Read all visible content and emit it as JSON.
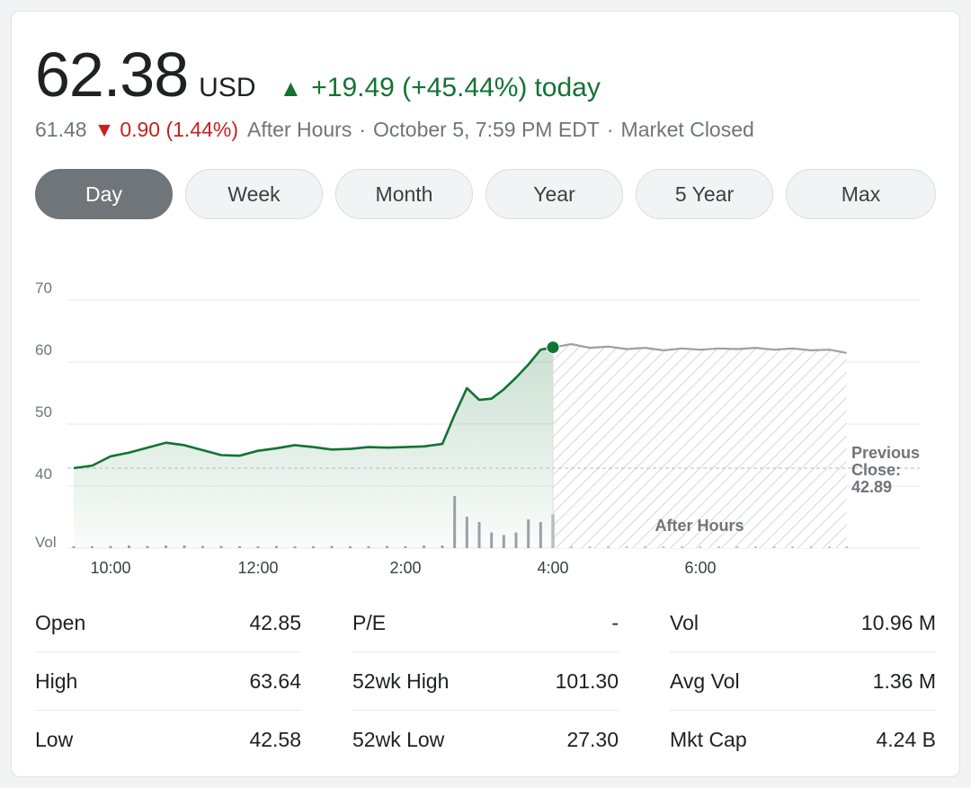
{
  "quote": {
    "price": "62.38",
    "currency": "USD",
    "change_arrow": "▲",
    "change": "+19.49 (+45.44%)",
    "change_period": "today",
    "after_hours_price": "61.48",
    "after_hours_arrow": "▼",
    "after_hours_change": "0.90 (1.44%)",
    "after_hours_label": "After Hours",
    "separator": "·",
    "datetime": "October 5, 7:59 PM EDT",
    "market_status": "Market Closed"
  },
  "tabs": [
    {
      "label": "Day",
      "active": true
    },
    {
      "label": "Week",
      "active": false
    },
    {
      "label": "Month",
      "active": false
    },
    {
      "label": "Year",
      "active": false
    },
    {
      "label": "5 Year",
      "active": false
    },
    {
      "label": "Max",
      "active": false
    }
  ],
  "colors": {
    "up": "#137333",
    "down": "#c5221f",
    "after_hours_line": "#9aa0a6",
    "grid": "#e8eaed"
  },
  "chart_data": {
    "type": "area",
    "y_tick_labels": [
      "70",
      "60",
      "50",
      "40"
    ],
    "volume_label": "Vol",
    "x_tick_labels": [
      "10:00",
      "12:00",
      "2:00",
      "4:00",
      "6:00"
    ],
    "ylim": [
      27.5,
      72.5
    ],
    "previous_close": {
      "label_line1": "Previous",
      "label_line2": "Close:",
      "value_text": "42.89",
      "value": 42.89
    },
    "after_hours_region_label": "After Hours",
    "regular_session": {
      "x": [
        "9:30",
        "9:45",
        "10:00",
        "10:15",
        "10:30",
        "10:45",
        "11:00",
        "11:15",
        "11:30",
        "11:45",
        "12:00",
        "12:15",
        "12:30",
        "12:45",
        "1:00",
        "1:15",
        "1:30",
        "1:45",
        "2:00",
        "2:15",
        "2:30",
        "2:40",
        "2:50",
        "3:00",
        "3:10",
        "3:20",
        "3:30",
        "3:40",
        "3:50",
        "4:00"
      ],
      "values": [
        42.9,
        43.3,
        44.8,
        45.4,
        46.2,
        47.0,
        46.6,
        45.8,
        45.0,
        44.9,
        45.7,
        46.1,
        46.6,
        46.3,
        45.9,
        46.0,
        46.3,
        46.2,
        46.3,
        46.4,
        46.8,
        51.5,
        55.8,
        53.9,
        54.1,
        55.6,
        57.5,
        59.6,
        62.0,
        62.38
      ]
    },
    "after_hours_session": {
      "x": [
        "4:00",
        "4:15",
        "4:30",
        "4:45",
        "5:00",
        "5:15",
        "5:30",
        "5:45",
        "6:00",
        "6:15",
        "6:30",
        "6:45",
        "7:00",
        "7:15",
        "7:30",
        "7:45",
        "7:59"
      ],
      "values": [
        62.38,
        62.9,
        62.3,
        62.5,
        62.1,
        62.3,
        61.9,
        62.2,
        62.0,
        62.2,
        62.1,
        62.3,
        62.0,
        62.2,
        61.9,
        62.0,
        61.48
      ]
    },
    "volume_relative": [
      0.02,
      0.03,
      0.04,
      0.05,
      0.04,
      0.05,
      0.05,
      0.04,
      0.04,
      0.03,
      0.03,
      0.04,
      0.03,
      0.03,
      0.04,
      0.03,
      0.03,
      0.04,
      0.03,
      0.05,
      0.05,
      1.0,
      0.6,
      0.5,
      0.3,
      0.25,
      0.3,
      0.55,
      0.5,
      0.65
    ]
  },
  "stats": {
    "columns": [
      [
        {
          "label": "Open",
          "value": "42.85"
        },
        {
          "label": "High",
          "value": "63.64"
        },
        {
          "label": "Low",
          "value": "42.58"
        }
      ],
      [
        {
          "label": "P/E",
          "value": "-"
        },
        {
          "label": "52wk High",
          "value": "101.30"
        },
        {
          "label": "52wk Low",
          "value": "27.30"
        }
      ],
      [
        {
          "label": "Vol",
          "value": "10.96 M"
        },
        {
          "label": "Avg Vol",
          "value": "1.36 M"
        },
        {
          "label": "Mkt Cap",
          "value": "4.24 B"
        }
      ]
    ]
  }
}
